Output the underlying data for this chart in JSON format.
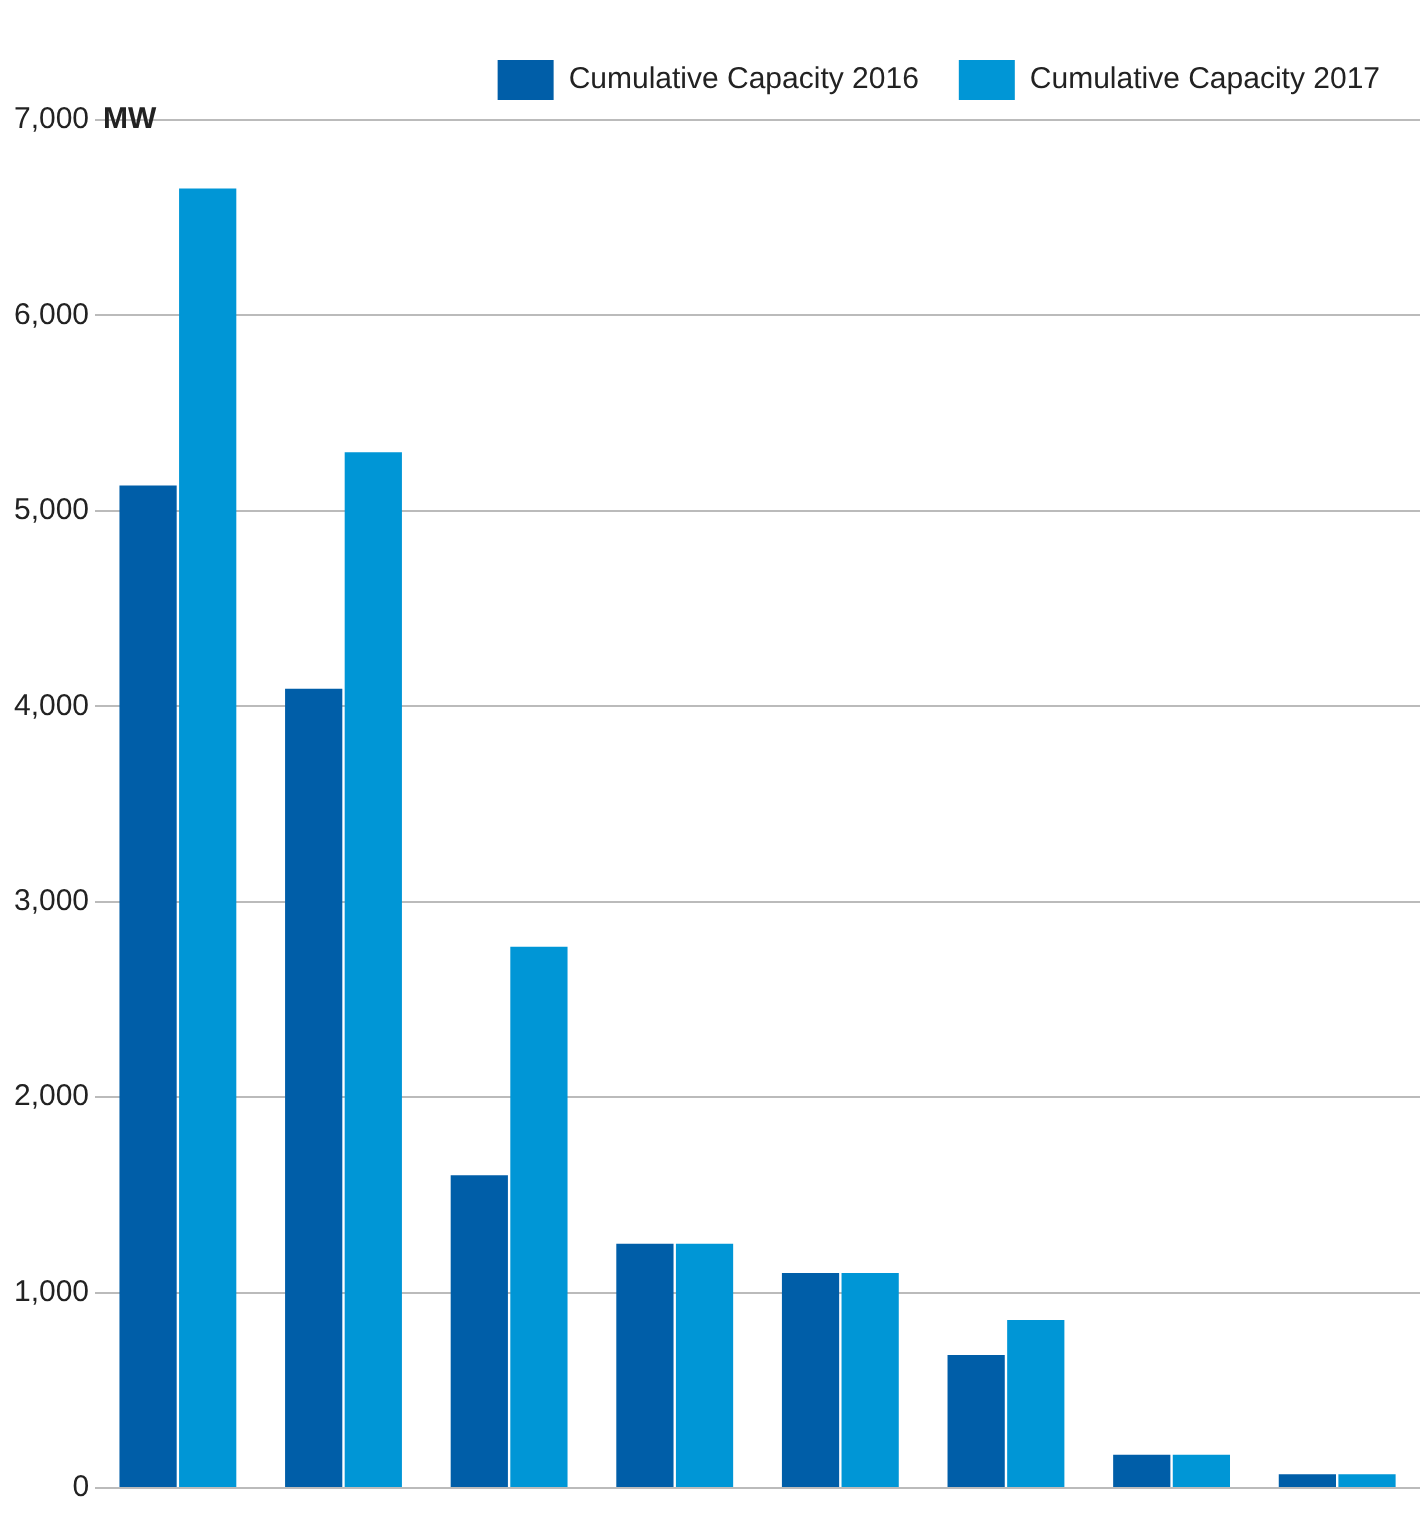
{
  "chart_data": {
    "type": "bar",
    "ylabel": "MW",
    "categories": [
      null,
      null,
      null,
      null,
      null,
      null,
      null,
      null
    ],
    "series": [
      {
        "name": "Cumulative Capacity 2016",
        "color": "#005ea8",
        "values": [
          5130,
          4090,
          1600,
          1250,
          1100,
          680,
          170,
          70
        ]
      },
      {
        "name": "Cumulative Capacity 2017",
        "color": "#0096d6",
        "values": [
          6650,
          5300,
          2770,
          1250,
          1100,
          860,
          170,
          70
        ]
      }
    ],
    "ylim": [
      0,
      7000
    ],
    "yticks": [
      {
        "value": 0,
        "label": "0"
      },
      {
        "value": 1000,
        "label": "1,000"
      },
      {
        "value": 2000,
        "label": "2,000"
      },
      {
        "value": 3000,
        "label": "3,000"
      },
      {
        "value": 4000,
        "label": "4,000"
      },
      {
        "value": 5000,
        "label": "5,000"
      },
      {
        "value": 6000,
        "label": "6,000"
      },
      {
        "value": 7000,
        "label": "7,000"
      }
    ],
    "grid": "y",
    "legend": "top right"
  }
}
